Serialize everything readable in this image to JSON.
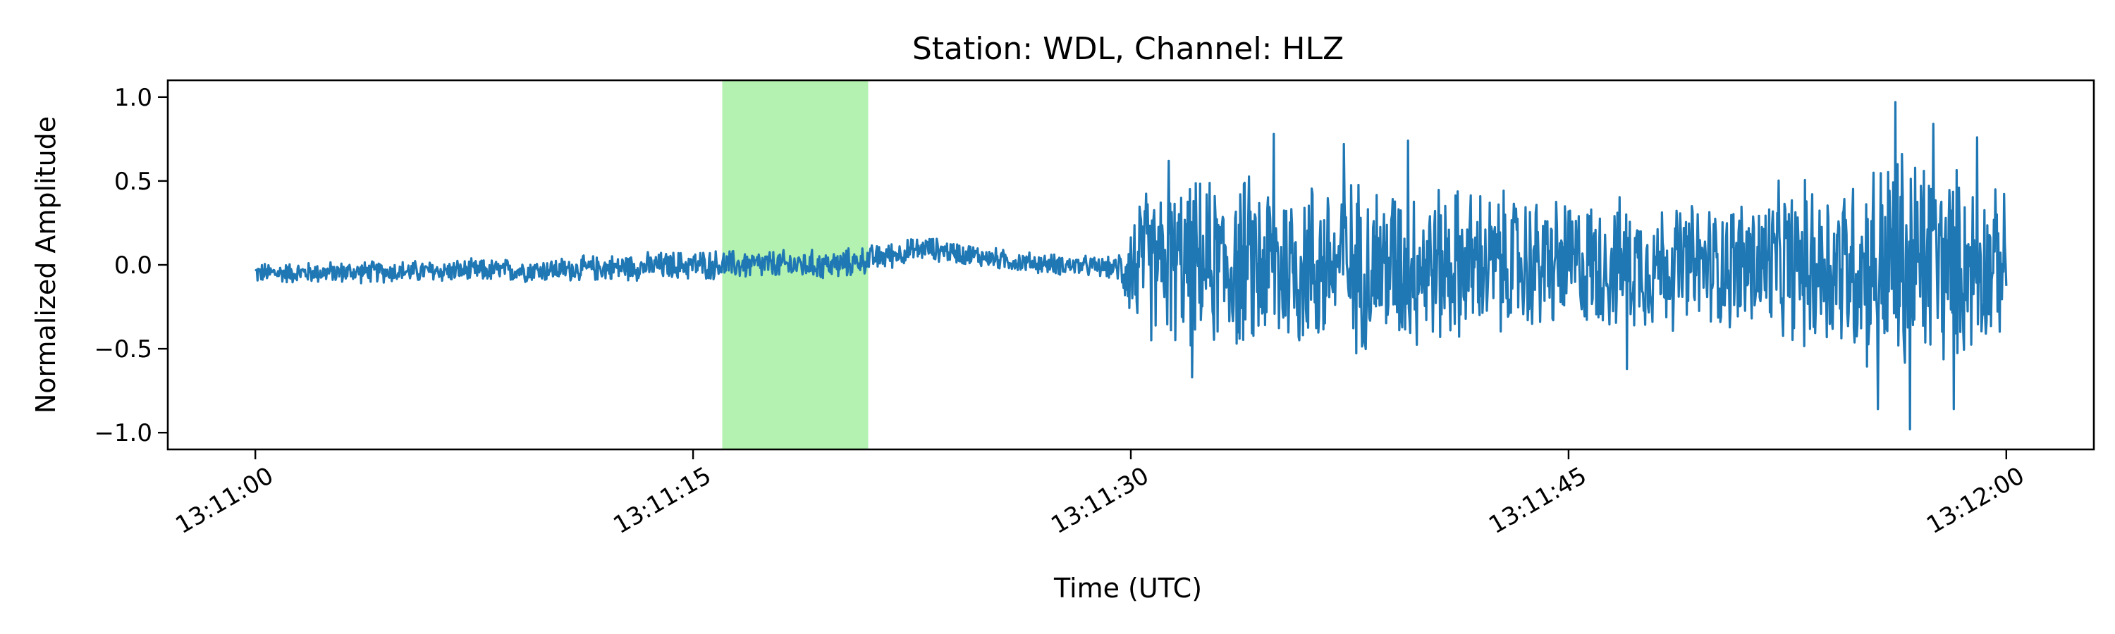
{
  "chart_data": {
    "type": "line",
    "title": "Station: WDL, Channel: HLZ",
    "xlabel": "Time (UTC)",
    "ylabel": "Normalized Amplitude",
    "xlim": [
      -3.0,
      63.0
    ],
    "ylim": [
      -1.1,
      1.1
    ],
    "x_ticks": [
      {
        "value": 0,
        "label": "13:11:00"
      },
      {
        "value": 15,
        "label": "13:11:15"
      },
      {
        "value": 30,
        "label": "13:11:30"
      },
      {
        "value": 45,
        "label": "13:11:45"
      },
      {
        "value": 60,
        "label": "13:12:00"
      }
    ],
    "y_ticks": [
      {
        "value": 1.0,
        "label": "1.0"
      },
      {
        "value": 0.5,
        "label": "0.5"
      },
      {
        "value": 0.0,
        "label": "0.0"
      },
      {
        "value": -0.5,
        "label": "−0.5"
      },
      {
        "value": -1.0,
        "label": "−1.0"
      }
    ],
    "highlight_span": {
      "x_start": 16.0,
      "x_end": 21.0,
      "color": "#b3f2b0"
    },
    "series": [
      {
        "name": "HLZ",
        "color": "#1f77b4",
        "x_start": 0,
        "x_end": 60,
        "envelope": [
          {
            "t": 0,
            "amp": 0.07,
            "offset": -0.05
          },
          {
            "t": 10,
            "amp": 0.08,
            "offset": -0.03
          },
          {
            "t": 15,
            "amp": 0.1,
            "offset": 0.0
          },
          {
            "t": 20,
            "amp": 0.1,
            "offset": 0.0
          },
          {
            "t": 23,
            "amp": 0.08,
            "offset": 0.1
          },
          {
            "t": 26,
            "amp": 0.07,
            "offset": 0.02
          },
          {
            "t": 29.5,
            "amp": 0.07,
            "offset": -0.02
          },
          {
            "t": 30.2,
            "amp": 0.5,
            "offset": 0.0
          },
          {
            "t": 35,
            "amp": 0.62,
            "offset": 0.0
          },
          {
            "t": 40,
            "amp": 0.55,
            "offset": 0.0
          },
          {
            "t": 45,
            "amp": 0.45,
            "offset": 0.0
          },
          {
            "t": 50,
            "amp": 0.42,
            "offset": 0.0
          },
          {
            "t": 55,
            "amp": 0.65,
            "offset": 0.0
          },
          {
            "t": 56.5,
            "amp": 0.85,
            "offset": 0.0
          },
          {
            "t": 60,
            "amp": 0.45,
            "offset": 0.0
          }
        ],
        "peaks": [
          {
            "t": 31.3,
            "value": 0.62
          },
          {
            "t": 34.9,
            "value": 0.78
          },
          {
            "t": 37.3,
            "value": 0.72
          },
          {
            "t": 39.5,
            "value": 0.74
          },
          {
            "t": 56.2,
            "value": 0.97
          },
          {
            "t": 57.5,
            "value": 0.84
          },
          {
            "t": 59.0,
            "value": 0.76
          },
          {
            "t": 32.1,
            "value": -0.67
          },
          {
            "t": 47.0,
            "value": -0.62
          },
          {
            "t": 56.7,
            "value": -0.98
          },
          {
            "t": 55.6,
            "value": -0.86
          },
          {
            "t": 58.2,
            "value": -0.86
          }
        ],
        "sample_count": 2400
      }
    ]
  }
}
